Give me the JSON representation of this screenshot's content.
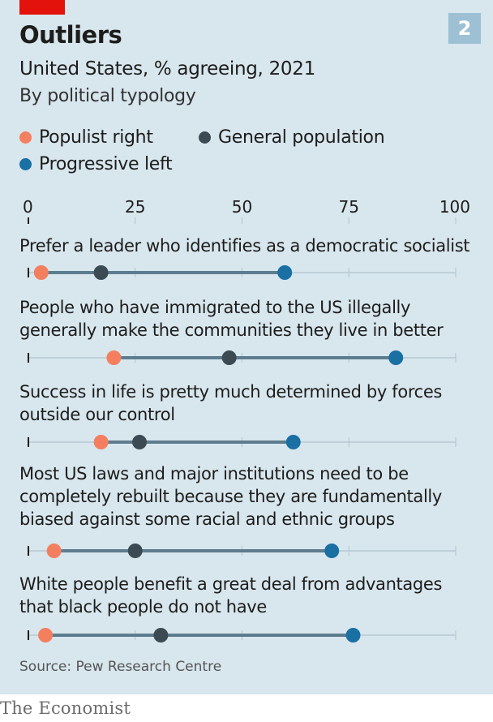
{
  "header": {
    "title": "Outliers",
    "subtitle": "United States, % agreeing, 2021",
    "subtitle2": "By political typology",
    "chart_number": "2"
  },
  "colors": {
    "populist_right": "#f47f5f",
    "general_population": "#3b4a53",
    "progressive_left": "#1a6fa3",
    "background": "#d8e6ee",
    "range_line": "#5d7d8e",
    "axis_line": "#b6c9d3"
  },
  "legend": [
    {
      "name": "Populist right",
      "color": "#f47f5f"
    },
    {
      "name": "General population",
      "color": "#3b4a53"
    },
    {
      "name": "Progressive left",
      "color": "#1a6fa3"
    }
  ],
  "chart_data": {
    "type": "dot-range",
    "title": "Outliers",
    "subtitle": "United States, % agreeing, 2021",
    "xlim": [
      0,
      100
    ],
    "x_ticks": [
      0,
      25,
      50,
      75,
      100
    ],
    "series": [
      {
        "name": "Populist right",
        "values": [
          3,
          20,
          17,
          6,
          4
        ]
      },
      {
        "name": "General population",
        "values": [
          17,
          47,
          26,
          25,
          31
        ]
      },
      {
        "name": "Progressive left",
        "values": [
          60,
          86,
          62,
          71,
          76
        ]
      }
    ],
    "categories": [
      "Prefer a leader who identifies as a democratic socialist",
      "People who have immigrated to the US illegally generally make the communities they live in better",
      "Success in life is pretty much determined by forces outside our control",
      "Most US laws and major institutions need to be completely rebuilt because they are fundamentally biased against some racial and ethnic groups",
      "White people benefit a great deal from advantages that black people do not have"
    ],
    "category_lines": [
      "Prefer a leader who identifies as a democratic socialist",
      "People who have immigrated to the US illegally\ngenerally make the communities they live in better",
      "Success in life is pretty much determined by forces\noutside our control",
      "Most US laws and major institutions need to be\ncompletely rebuilt because they are fundamentally\nbiased against some racial and ethnic groups",
      "White people benefit a great deal from advantages\nthat black people do not have"
    ]
  },
  "footer": {
    "source": "Source: Pew Research Centre",
    "brand": "The Economist"
  }
}
